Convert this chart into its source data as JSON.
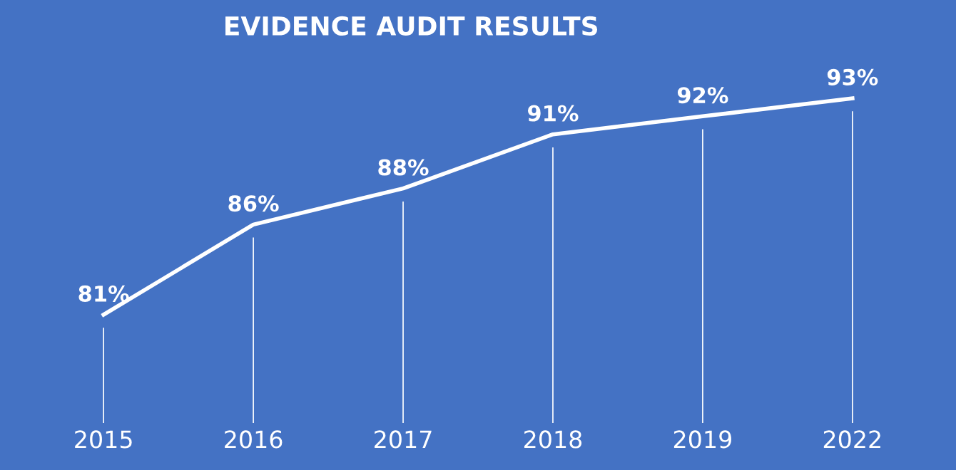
{
  "chart_data": {
    "type": "line",
    "title": "EVIDENCE AUDIT RESULTS",
    "categories": [
      "2015",
      "2016",
      "2017",
      "2018",
      "2019",
      "2022"
    ],
    "series": [
      {
        "color": "#ffffff",
        "values": [
          81,
          86,
          88,
          91,
          92,
          93
        ],
        "value_labels": [
          "81%",
          "86%",
          "88%",
          "91%",
          "92%",
          "93%"
        ]
      }
    ],
    "tick_labels": "x",
    "grid": "x",
    "line_style": "solid"
  }
}
